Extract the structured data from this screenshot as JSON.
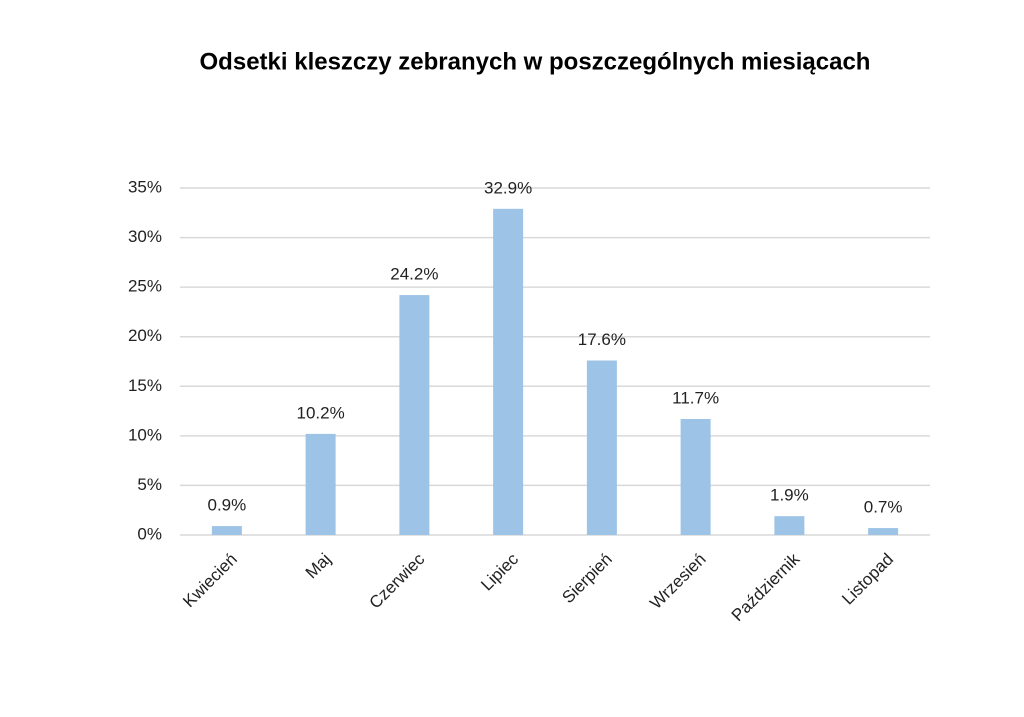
{
  "chart_data": {
    "type": "bar",
    "title": "Odsetki kleszczy zebranych w poszczególnych miesiącach",
    "categories": [
      "Kwiecień",
      "Maj",
      "Czerwiec",
      "Lipiec",
      "Sierpień",
      "Wrzesień",
      "Październik",
      "Listopad"
    ],
    "values": [
      0.9,
      10.2,
      24.2,
      32.9,
      17.6,
      11.7,
      1.9,
      0.7
    ],
    "value_labels": [
      "0.9%",
      "10.2%",
      "24.2%",
      "32.9%",
      "17.6%",
      "11.7%",
      "1.9%",
      "0.7%"
    ],
    "color": "#9dc3e6",
    "ylim": [
      0,
      35
    ],
    "yticks": [
      {
        "value": 0,
        "label": "0%"
      },
      {
        "value": 5,
        "label": "5%"
      },
      {
        "value": 10,
        "label": "10%"
      },
      {
        "value": 15,
        "label": "15%"
      },
      {
        "value": 20,
        "label": "20%"
      },
      {
        "value": 25,
        "label": "25%"
      },
      {
        "value": 30,
        "label": "30%"
      },
      {
        "value": 35,
        "label": "35%"
      }
    ],
    "grid": true
  }
}
